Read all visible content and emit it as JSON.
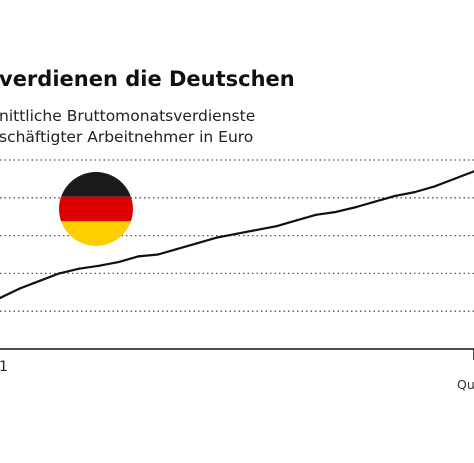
{
  "chart_data": {
    "type": "line",
    "title": "verdienen die Deutschen",
    "subtitle_lines": [
      "nittliche Bruttomonatsverdienste",
      "schäftigter Arbeitnehmer in Euro"
    ],
    "x_tick_labels": [
      "1"
    ],
    "source": "Qu",
    "grid": true,
    "legend": "none",
    "colors": {
      "line": "#111111",
      "grid": "#555555",
      "flag_black": "#1a1a1a",
      "flag_red": "#dd0000",
      "flag_gold": "#ffce00"
    },
    "icon": "germany-flag-icon",
    "ylim": [
      0,
      100
    ],
    "gridlines": [
      20,
      40,
      60,
      80,
      100
    ],
    "x": [
      0,
      1,
      2,
      3,
      4,
      5,
      6,
      7,
      8,
      9,
      10,
      11,
      12,
      13,
      14,
      15,
      16,
      17,
      18,
      19,
      20,
      21,
      22,
      23,
      24
    ],
    "values": [
      27,
      32,
      36,
      40,
      42.5,
      44,
      46,
      49,
      50,
      53,
      56,
      59,
      61,
      63,
      65,
      68,
      71,
      72.5,
      75,
      78,
      81,
      83,
      86,
      90,
      94
    ]
  }
}
